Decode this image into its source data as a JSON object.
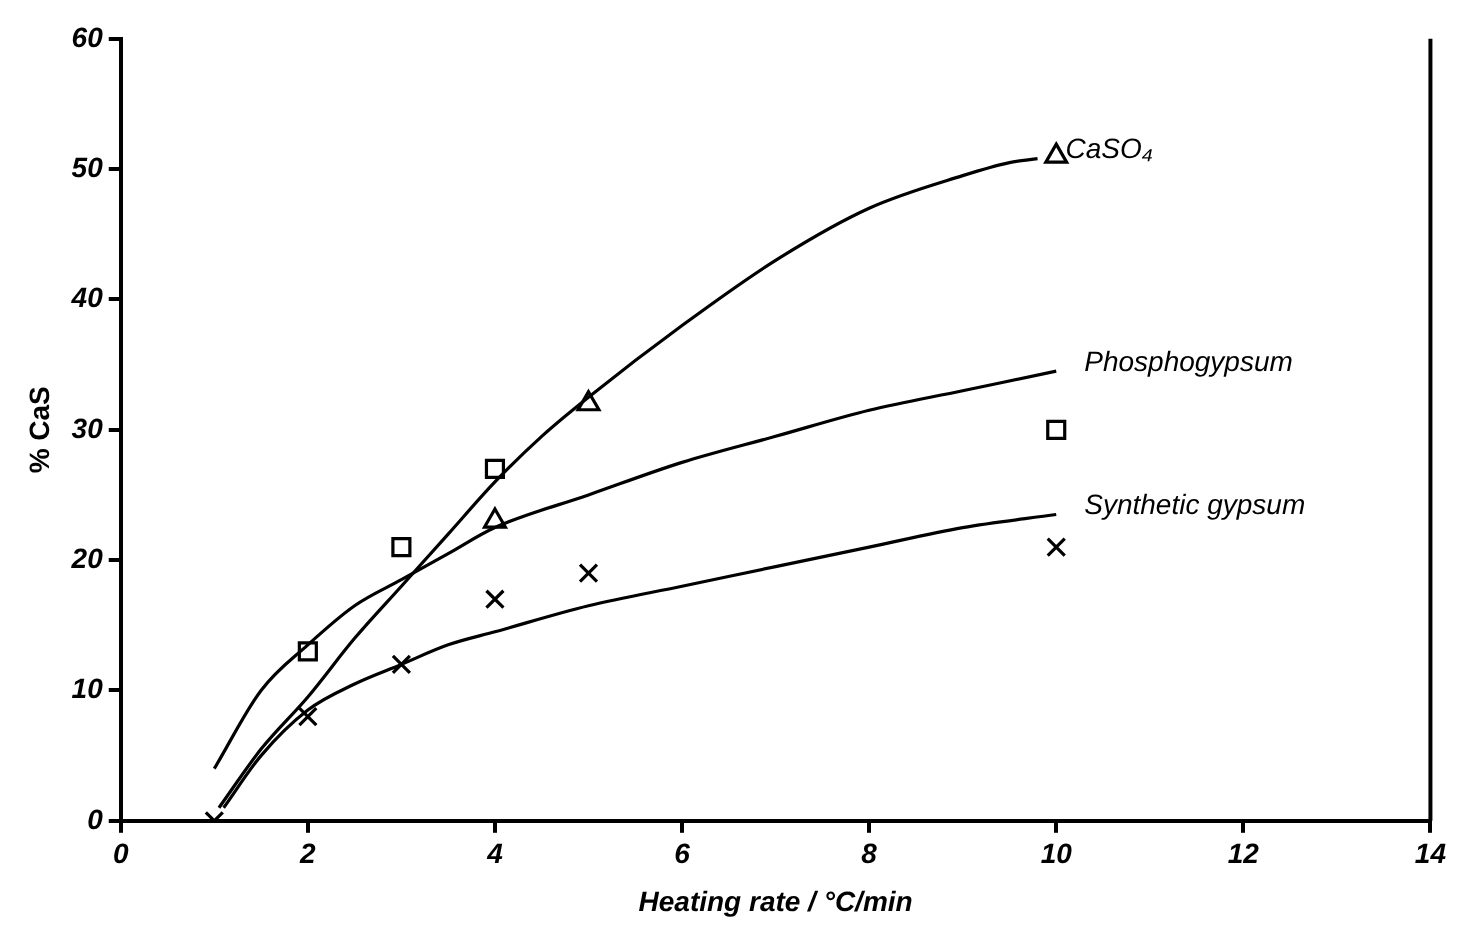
{
  "chart_data": {
    "type": "line",
    "xlabel": "Heating rate / °C/min",
    "ylabel": "% CaS",
    "xlim": [
      0,
      14
    ],
    "xticks": [
      0,
      2,
      4,
      6,
      8,
      10,
      12,
      14
    ],
    "ylim": [
      0,
      60
    ],
    "yticks": [
      0,
      10,
      20,
      30,
      40,
      50,
      60
    ],
    "legend": false,
    "grid": false,
    "series": [
      {
        "type": "line",
        "name": "CaSO₄",
        "color": "#000000",
        "marker": "none",
        "line_style": "solid",
        "x": [
          1.05,
          1.5,
          2,
          2.5,
          3,
          3.5,
          4,
          4.5,
          5,
          6,
          7,
          8,
          9,
          9.5,
          9.8
        ],
        "values": [
          1,
          5.5,
          9.5,
          14,
          18,
          22,
          26,
          29.5,
          32.5,
          38,
          43,
          47,
          49.5,
          50.5,
          50.8
        ]
      },
      {
        "type": "line",
        "name": "Phosphogypsum",
        "color": "#000000",
        "marker": "none",
        "line_style": "solid",
        "x": [
          1,
          1.5,
          2,
          2.5,
          3,
          3.5,
          4,
          5,
          6,
          7,
          8,
          9,
          10
        ],
        "values": [
          4,
          10,
          13.5,
          16.5,
          18.5,
          20.5,
          22.5,
          25,
          27.5,
          29.5,
          31.5,
          33,
          34.5
        ]
      },
      {
        "type": "line",
        "name": "Synthetic gypsum",
        "color": "#000000",
        "marker": "none",
        "line_style": "solid",
        "x": [
          1.1,
          1.5,
          2,
          2.5,
          3,
          3.5,
          4,
          5,
          6,
          7,
          8,
          9,
          10
        ],
        "values": [
          1,
          5,
          8.5,
          10.5,
          12,
          13.5,
          14.5,
          16.5,
          18,
          19.5,
          21,
          22.5,
          23.5
        ]
      },
      {
        "type": "scatter",
        "color": "#000000",
        "marker": "triangle",
        "x": [
          4,
          5,
          10
        ],
        "values": [
          23,
          32,
          51
        ]
      },
      {
        "type": "scatter",
        "color": "#000000",
        "marker": "square",
        "x": [
          2,
          3,
          4,
          10
        ],
        "values": [
          13,
          21,
          27,
          30
        ]
      },
      {
        "type": "scatter",
        "color": "#000000",
        "marker": "cross",
        "x": [
          1,
          2,
          3,
          4,
          5,
          10
        ],
        "values": [
          0,
          8,
          12,
          17,
          19,
          21
        ]
      }
    ]
  }
}
